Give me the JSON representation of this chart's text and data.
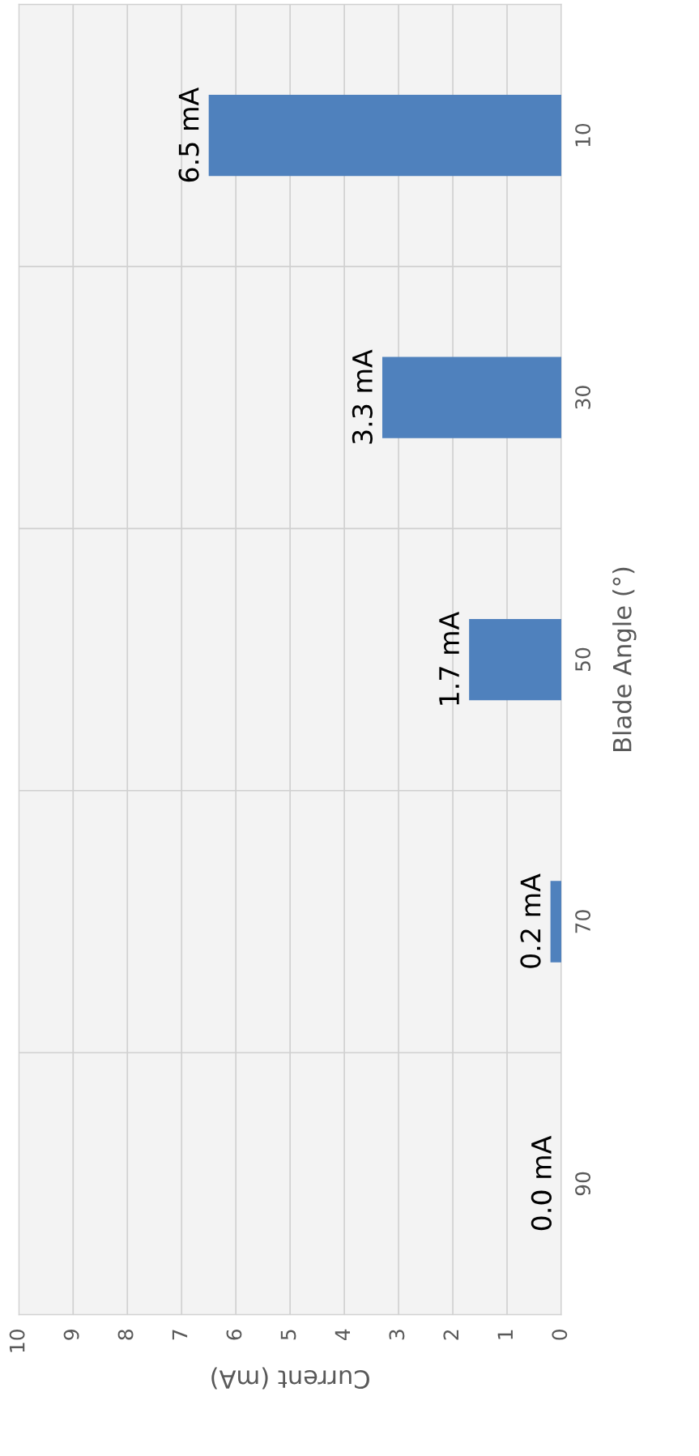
{
  "chart_data": {
    "type": "bar",
    "orientation": "horizontal",
    "categories": [
      "10",
      "30",
      "50",
      "70",
      "90"
    ],
    "values": [
      6.5,
      3.3,
      1.7,
      0.2,
      0.0
    ],
    "value_labels": [
      "6.5 mA",
      "3.3 mA",
      "1.7 mA",
      "0.2 mA",
      "0.0 mA"
    ],
    "color": "#4f81bd",
    "xlabel": "Current (mA)",
    "ylabel": "Blade Angle (°)",
    "xlim": [
      10,
      0
    ],
    "xticks": [
      0,
      1,
      2,
      3,
      4,
      5,
      6,
      7,
      8,
      9,
      10
    ],
    "grid": true
  }
}
